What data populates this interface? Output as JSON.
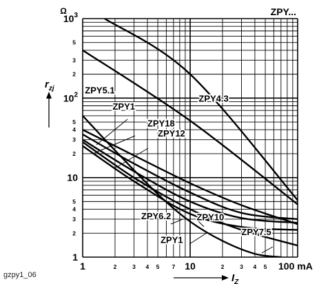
{
  "chart_data": {
    "type": "line",
    "title": "ZPY...",
    "x_scale": "log",
    "y_scale": "log",
    "xlim": [
      1,
      100
    ],
    "ylim": [
      1,
      1000
    ],
    "x_unit": "mA",
    "y_unit": "Ω",
    "xlabel": "I",
    "xlabel_sub": "Z",
    "ylabel": "r",
    "ylabel_sub": "zj",
    "grid": true,
    "x_ticks": {
      "major": [
        {
          "value": 1,
          "label": "1"
        },
        {
          "value": 10,
          "label": "10"
        },
        {
          "value": 100,
          "label": "100 mA"
        }
      ],
      "minor": [
        {
          "value": 2,
          "label": "2"
        },
        {
          "value": 3,
          "label": "3"
        },
        {
          "value": 4,
          "label": "4"
        },
        {
          "value": 5,
          "label": "5"
        },
        {
          "value": 7,
          "label": "7"
        },
        {
          "value": 20,
          "label": "2"
        },
        {
          "value": 30,
          "label": "3"
        },
        {
          "value": 40,
          "label": "4"
        },
        {
          "value": 50,
          "label": "5"
        }
      ]
    },
    "y_ticks": {
      "major": [
        {
          "value": 1,
          "label": "1"
        },
        {
          "value": 10,
          "label": "10"
        },
        {
          "value": 100,
          "label": "10",
          "sup": "2"
        },
        {
          "value": 1000,
          "label": "10",
          "sup": "3"
        }
      ],
      "minor": [
        {
          "value": 2,
          "label": "2"
        },
        {
          "value": 3,
          "label": "3"
        },
        {
          "value": 4,
          "label": "4"
        },
        {
          "value": 5,
          "label": "5"
        },
        {
          "value": 20,
          "label": "2"
        },
        {
          "value": 30,
          "label": "3"
        },
        {
          "value": 40,
          "label": "4"
        },
        {
          "value": 50,
          "label": "5"
        },
        {
          "value": 200,
          "label": "2"
        },
        {
          "value": 300,
          "label": "3"
        },
        {
          "value": 500,
          "label": "5"
        }
      ]
    },
    "series": [
      {
        "name": "ZPY4.3",
        "x": [
          1.6,
          10,
          100
        ],
        "y": [
          1000,
          200,
          5.2
        ]
      },
      {
        "name": "ZPY5.1",
        "x": [
          1,
          10,
          100
        ],
        "y": [
          400,
          52,
          4.6
        ]
      },
      {
        "name": "ZPY1",
        "x": [
          1,
          2,
          5,
          10,
          20,
          40,
          70
        ],
        "y": [
          60,
          22,
          6.2,
          2.8,
          1.6,
          1.1,
          1
        ]
      },
      {
        "name": "ZPY18",
        "x": [
          1,
          3,
          10,
          30,
          100
        ],
        "y": [
          40,
          19,
          8.5,
          4.5,
          2.6
        ]
      },
      {
        "name": "ZPY12",
        "x": [
          1,
          3,
          10,
          30,
          100
        ],
        "y": [
          35,
          15,
          6.5,
          3.6,
          3
        ]
      },
      {
        "name": "ZPY10",
        "x": [
          1,
          3,
          10,
          30,
          100
        ],
        "y": [
          30,
          12,
          5,
          3.1,
          2.7
        ]
      },
      {
        "name": "ZPY6.2",
        "x": [
          1,
          3,
          10,
          30,
          100
        ],
        "y": [
          25,
          9,
          3.5,
          2.4,
          2.2
        ]
      },
      {
        "name": "ZPY7.5",
        "x": [
          1,
          3,
          10,
          30,
          100
        ],
        "y": [
          28,
          10,
          4,
          2.2,
          1.4
        ]
      }
    ],
    "annotations": [
      {
        "text": "ZPY5.1",
        "x": 1.05,
        "y": 115
      },
      {
        "text": "ZPY4.3",
        "x": 12,
        "y": 90
      },
      {
        "text": "ZPY1",
        "x": 1.9,
        "y": 72
      },
      {
        "text": "ZPY18",
        "x": 4,
        "y": 44
      },
      {
        "text": "ZPY12",
        "x": 5,
        "y": 33
      },
      {
        "text": "ZPY6.2",
        "x": 3.5,
        "y": 3.0
      },
      {
        "text": "ZPY10",
        "x": 11.5,
        "y": 2.9
      },
      {
        "text": "ZPY1",
        "x": 5.3,
        "y": 1.5
      },
      {
        "text": "ZPY7.5",
        "x": 30,
        "y": 1.9
      }
    ]
  },
  "figure_id": "gzpy1_06"
}
